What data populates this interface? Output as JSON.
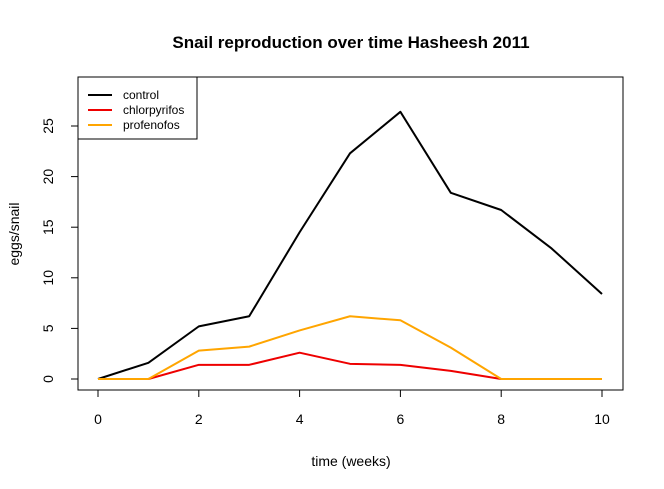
{
  "chart_data": {
    "type": "line",
    "title": "Snail reproduction over time Hasheesh 2011",
    "xlabel": "time (weeks)",
    "ylabel": "eggs/snail",
    "xlim": [
      0,
      10
    ],
    "ylim": [
      0,
      25
    ],
    "x_ticks": [
      0,
      2,
      4,
      6,
      8,
      10
    ],
    "y_ticks": [
      0,
      5,
      10,
      15,
      20,
      25
    ],
    "grid": false,
    "legend_position": "top-left",
    "x": [
      0,
      1,
      2,
      3,
      4,
      5,
      6,
      7,
      8,
      9,
      10
    ],
    "series": [
      {
        "name": "control",
        "color": "#000000",
        "values": [
          0,
          1.6,
          5.2,
          6.2,
          14.5,
          22.3,
          26.4,
          18.4,
          16.7,
          12.9,
          8.4
        ]
      },
      {
        "name": "chlorpyrifos",
        "color": "#ee0000",
        "values": [
          0,
          0,
          1.4,
          1.4,
          2.6,
          1.5,
          1.4,
          0.8,
          0,
          0,
          0
        ]
      },
      {
        "name": "profenofos",
        "color": "#ffa500",
        "values": [
          0,
          0,
          2.8,
          3.2,
          4.8,
          6.2,
          5.8,
          3.1,
          0,
          0,
          0
        ]
      }
    ]
  }
}
